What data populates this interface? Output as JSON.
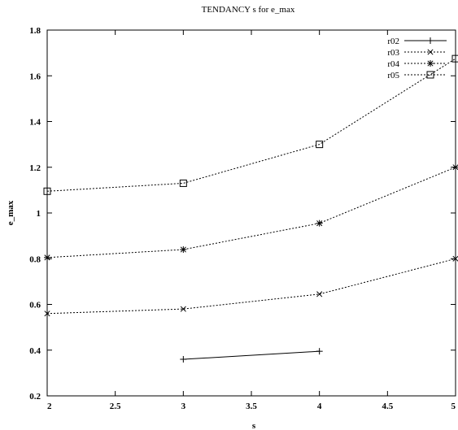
{
  "chart_data": {
    "type": "line",
    "title": "TENDANCY s for e_max",
    "xlabel": "s",
    "ylabel": "e_max",
    "xlim": [
      2,
      5
    ],
    "ylim": [
      0.2,
      1.8
    ],
    "xticks": [
      2,
      2.5,
      3,
      3.5,
      4,
      4.5,
      5
    ],
    "yticks": [
      0.2,
      0.4,
      0.6,
      0.8,
      1,
      1.2,
      1.4,
      1.6,
      1.8
    ],
    "grid": false,
    "legend_position": "top-right",
    "series": [
      {
        "name": "r02",
        "marker": "plus",
        "dash": "solid",
        "x": [
          3,
          4
        ],
        "y": [
          0.36,
          0.395
        ]
      },
      {
        "name": "r03",
        "marker": "cross",
        "dash": "dotted",
        "x": [
          2,
          3,
          4,
          5
        ],
        "y": [
          0.56,
          0.58,
          0.645,
          0.8
        ]
      },
      {
        "name": "r04",
        "marker": "star",
        "dash": "dotted",
        "x": [
          2,
          3,
          4,
          5
        ],
        "y": [
          0.805,
          0.84,
          0.955,
          1.2
        ]
      },
      {
        "name": "r05",
        "marker": "square",
        "dash": "dotted",
        "x": [
          2,
          3,
          4,
          5
        ],
        "y": [
          1.095,
          1.13,
          1.3,
          1.675
        ]
      }
    ]
  }
}
